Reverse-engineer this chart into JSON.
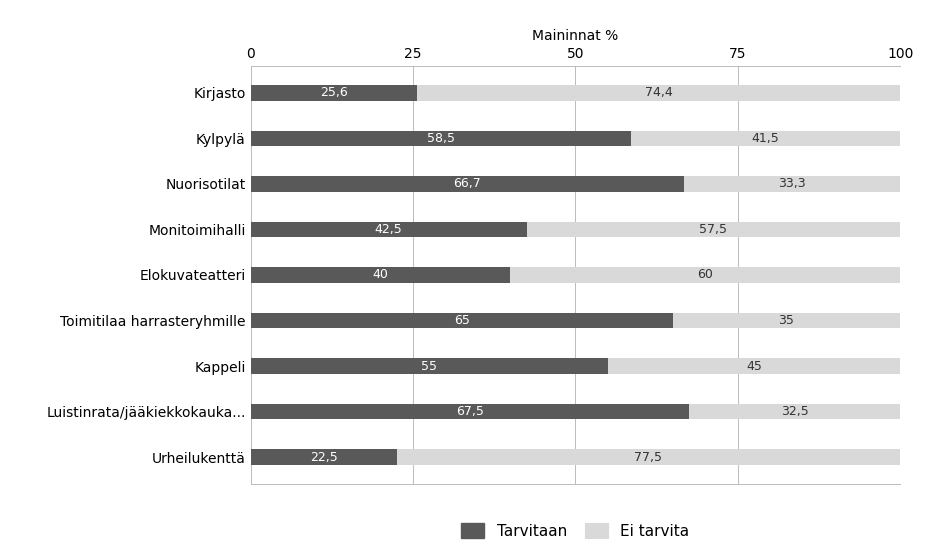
{
  "categories": [
    "Kirjasto",
    "Kylpylä",
    "Nuorisotilat",
    "Monitoimihalli",
    "Elokuvateatteri",
    "Toimitilaa harrasteryhmille",
    "Kappeli",
    "Luistinrata/jääkiekkokauka...",
    "Urheilukenttä"
  ],
  "tarvitaan": [
    25.6,
    58.5,
    66.7,
    42.5,
    40.0,
    65.0,
    55.0,
    67.5,
    22.5
  ],
  "ei_tarvita": [
    74.4,
    41.5,
    33.3,
    57.5,
    60.0,
    35.0,
    45.0,
    32.5,
    77.5
  ],
  "labels_tarvitaan": [
    "25,6",
    "58,5",
    "66,7",
    "42,5",
    "40",
    "65",
    "55",
    "67,5",
    "22,5"
  ],
  "labels_ei_tarvita": [
    "74,4",
    "41,5",
    "33,3",
    "57,5",
    "60",
    "35",
    "45",
    "32,5",
    "77,5"
  ],
  "color_tarvitaan": "#595959",
  "color_ei_tarvita": "#d9d9d9",
  "xlabel": "Maininnat %",
  "legend_tarvitaan": "Tarvitaan",
  "legend_ei_tarvita": "Ei tarvita",
  "xlim": [
    0,
    100
  ],
  "xticks": [
    0,
    25,
    50,
    75,
    100
  ],
  "bar_height": 0.35,
  "edgecolor": "none",
  "background_color": "#ffffff"
}
